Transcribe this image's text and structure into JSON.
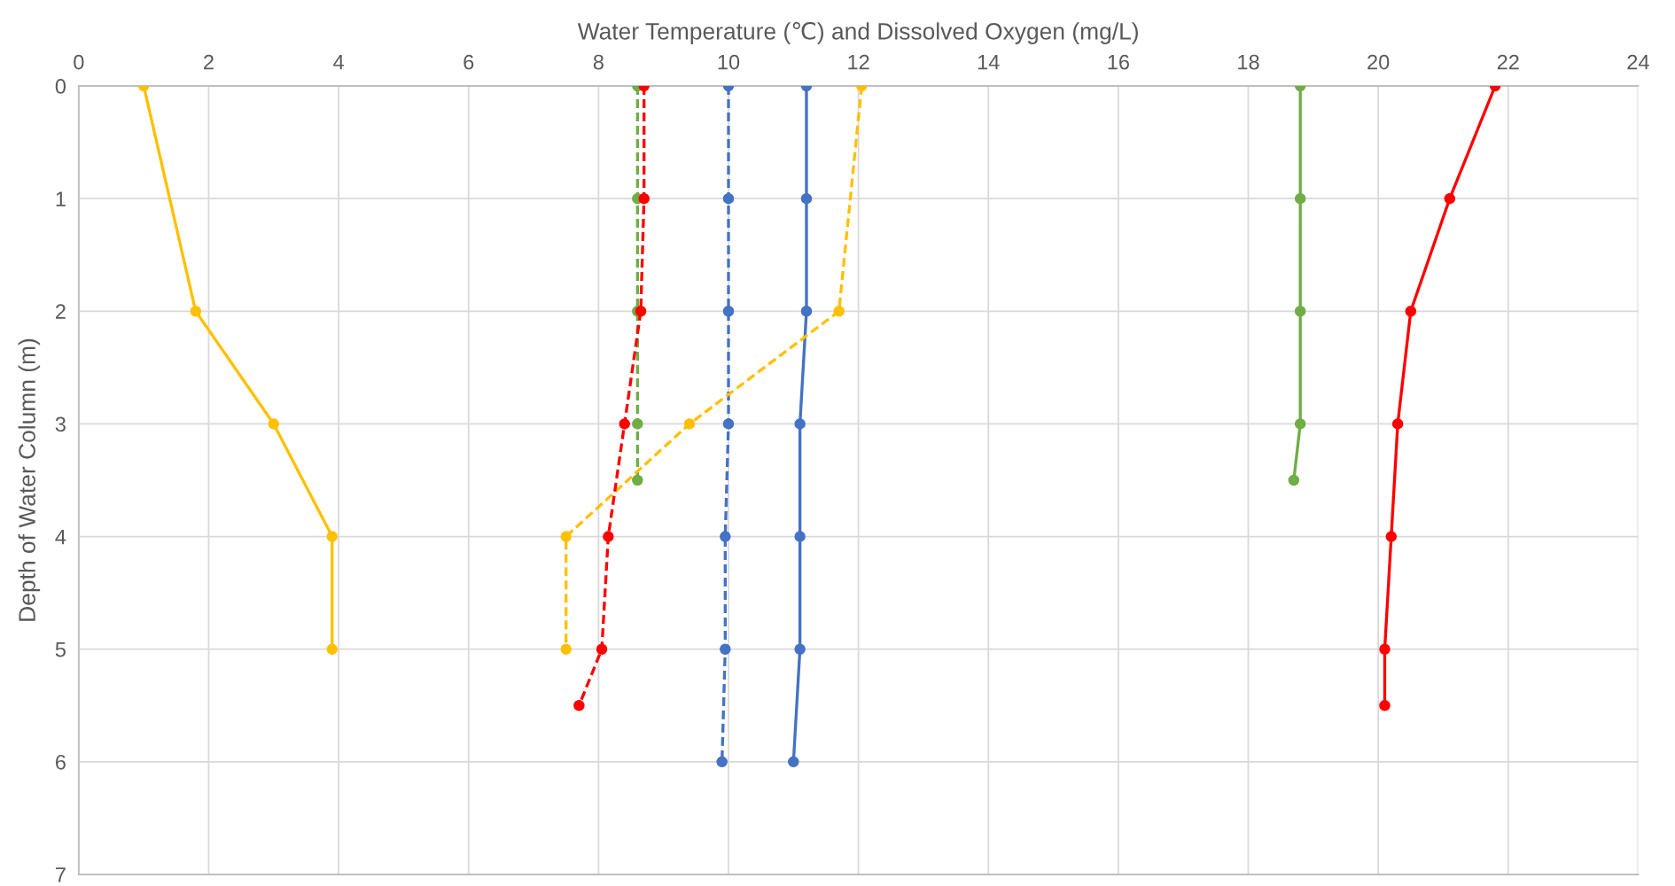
{
  "chart_data": {
    "type": "line",
    "xlabel": "Water Temperature (℃) and Dissolved Oxygen (mg/L)",
    "ylabel": "Depth of Water Column (m)",
    "xlim": [
      0,
      24
    ],
    "xticks": [
      0,
      2,
      4,
      6,
      8,
      10,
      12,
      14,
      16,
      18,
      20,
      22,
      24
    ],
    "ylim": [
      7,
      0
    ],
    "yticks": [
      0,
      1,
      2,
      3,
      4,
      5,
      6,
      7
    ],
    "grid": true,
    "marker": "circle",
    "legend": false,
    "series": [
      {
        "color": "#70ad47",
        "line_style": "solid",
        "x": [
          18.8,
          18.8,
          18.8,
          18.8,
          18.7
        ],
        "values": [
          0,
          1,
          2,
          3,
          3.5
        ]
      },
      {
        "color": "#70ad47",
        "line_style": "dashed",
        "x": [
          8.6,
          8.6,
          8.6,
          8.6,
          8.6
        ],
        "values": [
          0,
          1,
          2,
          3,
          3.5
        ]
      },
      {
        "color": "#4472c4",
        "line_style": "solid",
        "x": [
          11.2,
          11.2,
          11.2,
          11.1,
          11.1,
          11.1,
          11.0
        ],
        "values": [
          0,
          1,
          2,
          3,
          4,
          5,
          6
        ]
      },
      {
        "color": "#4472c4",
        "line_style": "dashed",
        "x": [
          10.0,
          10.0,
          10.0,
          10.0,
          9.95,
          9.95,
          9.9
        ],
        "values": [
          0,
          1,
          2,
          3,
          4,
          5,
          6
        ]
      },
      {
        "color": "#ffc000",
        "line_style": "solid",
        "x": [
          1.0,
          1.8,
          3.0,
          3.9,
          3.9
        ],
        "values": [
          0,
          2,
          3,
          4,
          5
        ]
      },
      {
        "color": "#ffc000",
        "line_style": "dashed",
        "x": [
          12.05,
          11.7,
          9.4,
          7.5,
          7.5
        ],
        "values": [
          0,
          2,
          3,
          4,
          5
        ]
      },
      {
        "color": "#ff0000",
        "line_style": "solid",
        "x": [
          21.8,
          21.1,
          20.5,
          20.3,
          20.2,
          20.1,
          20.1
        ],
        "values": [
          0,
          1,
          2,
          3,
          4,
          5,
          5.5
        ]
      },
      {
        "color": "#ff0000",
        "line_style": "dashed",
        "x": [
          8.7,
          8.7,
          8.65,
          8.4,
          8.15,
          8.05,
          7.7
        ],
        "values": [
          0,
          1,
          2,
          3,
          4,
          5,
          5.5
        ]
      }
    ]
  }
}
